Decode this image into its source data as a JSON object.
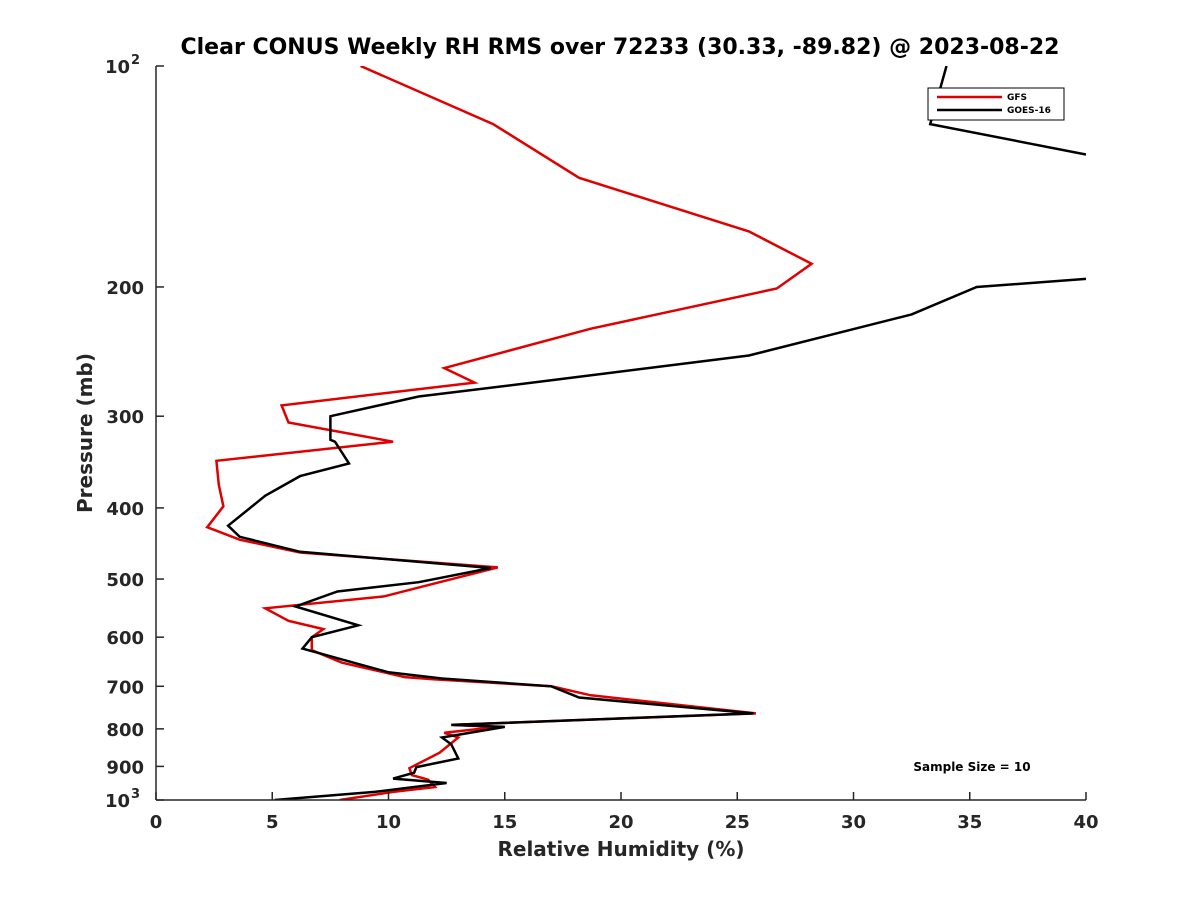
{
  "chart_data": {
    "type": "line",
    "title": "Clear CONUS Weekly RH RMS over 72233 (30.33, -89.82) @ 2023-08-22",
    "xlabel": "Relative Humidity (%)",
    "ylabel": "Pressure (mb)",
    "xlim": [
      0,
      40
    ],
    "ylim": [
      100,
      1000
    ],
    "yscale": "log",
    "y_reversed": true,
    "xticks": [
      0,
      5,
      10,
      15,
      20,
      25,
      30,
      35,
      40
    ],
    "xtick_labels": [
      "0",
      "5",
      "10",
      "15",
      "20",
      "25",
      "30",
      "35",
      "40"
    ],
    "ytick_labels": [
      {
        "value": 100,
        "base": "10",
        "exp": "2"
      },
      {
        "value": 200,
        "base": "200",
        "exp": ""
      },
      {
        "value": 300,
        "base": "300",
        "exp": ""
      },
      {
        "value": 400,
        "base": "400",
        "exp": ""
      },
      {
        "value": 500,
        "base": "500",
        "exp": ""
      },
      {
        "value": 600,
        "base": "600",
        "exp": ""
      },
      {
        "value": 700,
        "base": "700",
        "exp": ""
      },
      {
        "value": 800,
        "base": "800",
        "exp": ""
      },
      {
        "value": 900,
        "base": "900",
        "exp": ""
      },
      {
        "value": 1000,
        "base": "10",
        "exp": "3"
      }
    ],
    "legend": {
      "location": "top-right"
    },
    "annotation": "Sample Size = 10",
    "series": [
      {
        "name": "GFS",
        "color": "#e00000",
        "rh": [
          8.8,
          14.5,
          18.2,
          25.5,
          28.2,
          26.7,
          18.7,
          12.4,
          13.7,
          5.4,
          5.7,
          10.2,
          2.6,
          2.7,
          2.9,
          2.2,
          3.6,
          6.2,
          14.7,
          12.2,
          9.8,
          4.7,
          5.7,
          7.2,
          6.7,
          6.7,
          8.0,
          10.7,
          12.0,
          17.0,
          18.7,
          25.8,
          12.7,
          14.7,
          12.4,
          13.0,
          12.2,
          10.9,
          11.0,
          11.7,
          12.0,
          10.2,
          7.9
        ],
        "pressure": [
          100,
          120,
          142,
          168,
          186,
          201,
          228,
          258,
          270,
          290,
          306,
          325,
          345,
          372,
          398,
          425,
          442,
          460,
          482,
          505,
          528,
          548,
          570,
          585,
          600,
          625,
          650,
          680,
          685,
          700,
          720,
          762,
          790,
          795,
          810,
          822,
          862,
          905,
          925,
          938,
          960,
          975,
          1000
        ]
      },
      {
        "name": "GOES-16",
        "color": "#000000",
        "rh": [
          34.0,
          33.3,
          40.0,
          null,
          40.0,
          35.3,
          32.5,
          25.5,
          17.0,
          11.3,
          7.5,
          7.5,
          7.7,
          8.3,
          6.2,
          4.7,
          3.1,
          3.6,
          6.2,
          14.4,
          11.3,
          7.8,
          6.0,
          8.7,
          6.7,
          6.3,
          10.0,
          12.3,
          17.0,
          18.2,
          25.7,
          12.7,
          15.0,
          12.3,
          12.7,
          13.0,
          11.2,
          11.1,
          10.2,
          12.5,
          9.4,
          5.1
        ],
        "pressure": [
          100,
          120,
          132,
          null,
          195,
          200,
          218,
          248,
          268,
          282,
          300,
          323,
          325,
          348,
          362,
          385,
          423,
          438,
          459,
          483,
          505,
          520,
          545,
          578,
          600,
          622,
          670,
          683,
          700,
          725,
          762,
          790,
          795,
          822,
          840,
          878,
          902,
          918,
          935,
          948,
          975,
          1000
        ]
      }
    ]
  }
}
